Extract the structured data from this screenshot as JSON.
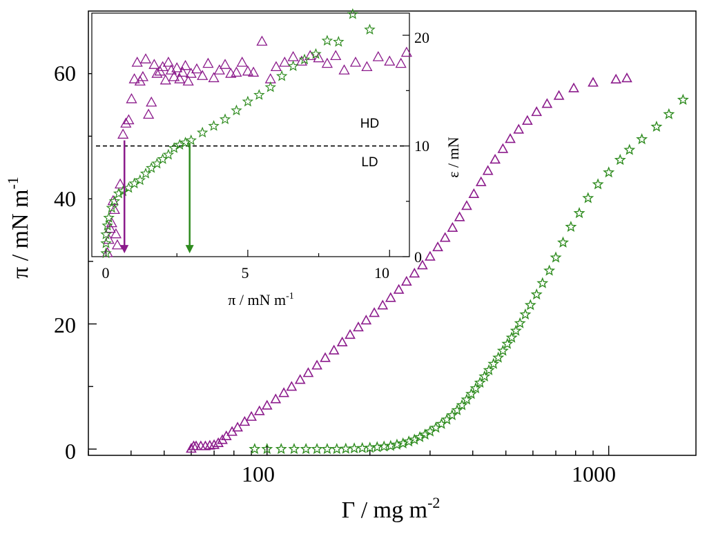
{
  "colors": {
    "purple": "#8B1A8B",
    "green": "#2E8B1E",
    "axis": "#000000"
  },
  "chart_data": [
    {
      "id": "main",
      "type": "scatter",
      "xscale": "log",
      "xlim": [
        30,
        1800
      ],
      "ylim": [
        -1,
        70
      ],
      "xlabel": "Γ / mg m",
      "xlabel_sup": "-2",
      "ylabel": "π / mN m",
      "ylabel_sup": "-1",
      "x_ticks": [
        100,
        1000
      ],
      "x_tick_labels": [
        "100",
        "1000"
      ],
      "y_ticks": [
        0,
        20,
        40,
        60
      ],
      "y_tick_labels": [
        "0",
        "20",
        "40",
        "60"
      ],
      "series": [
        {
          "name": "purple triangles",
          "marker": "triangle",
          "color": "#8B1A8B",
          "points": [
            [
              60,
              0
            ],
            [
              61,
              0.4
            ],
            [
              62,
              0.4
            ],
            [
              64,
              0.4
            ],
            [
              66,
              0.4
            ],
            [
              68,
              0.5
            ],
            [
              70,
              0.6
            ],
            [
              72,
              0.9
            ],
            [
              74,
              1.4
            ],
            [
              76,
              2.0
            ],
            [
              79,
              2.7
            ],
            [
              82,
              3.4
            ],
            [
              86,
              4.3
            ],
            [
              90,
              5.1
            ],
            [
              95,
              6.0
            ],
            [
              100,
              6.9
            ],
            [
              106,
              7.9
            ],
            [
              112,
              8.9
            ],
            [
              118,
              9.9
            ],
            [
              125,
              11.0
            ],
            [
              132,
              12.1
            ],
            [
              140,
              13.3
            ],
            [
              148,
              14.5
            ],
            [
              157,
              15.7
            ],
            [
              166,
              17.0
            ],
            [
              175,
              18.2
            ],
            [
              185,
              19.4
            ],
            [
              195,
              20.5
            ],
            [
              206,
              21.7
            ],
            [
              218,
              22.9
            ],
            [
              230,
              24.1
            ],
            [
              243,
              25.4
            ],
            [
              256,
              26.7
            ],
            [
              270,
              28.0
            ],
            [
              285,
              29.3
            ],
            [
              300,
              30.7
            ],
            [
              316,
              32.2
            ],
            [
              332,
              33.7
            ],
            [
              349,
              35.3
            ],
            [
              366,
              37.0
            ],
            [
              384,
              38.8
            ],
            [
              403,
              40.7
            ],
            [
              423,
              42.6
            ],
            [
              443,
              44.4
            ],
            [
              465,
              46.2
            ],
            [
              490,
              47.9
            ],
            [
              515,
              49.5
            ],
            [
              545,
              51.0
            ],
            [
              578,
              52.4
            ],
            [
              615,
              53.8
            ],
            [
              660,
              55.1
            ],
            [
              715,
              56.4
            ],
            [
              790,
              57.6
            ],
            [
              900,
              58.5
            ],
            [
              1050,
              59.0
            ],
            [
              1130,
              59.2
            ]
          ]
        },
        {
          "name": "green stars",
          "marker": "star",
          "color": "#2E8B1E",
          "points": [
            [
              92,
              0
            ],
            [
              100,
              0
            ],
            [
              110,
              0
            ],
            [
              120,
              0
            ],
            [
              130,
              0
            ],
            [
              140,
              0
            ],
            [
              150,
              0
            ],
            [
              160,
              0
            ],
            [
              170,
              0.05
            ],
            [
              180,
              0.1
            ],
            [
              190,
              0.15
            ],
            [
              200,
              0.2
            ],
            [
              210,
              0.3
            ],
            [
              220,
              0.4
            ],
            [
              230,
              0.5
            ],
            [
              240,
              0.7
            ],
            [
              250,
              0.9
            ],
            [
              260,
              1.2
            ],
            [
              270,
              1.5
            ],
            [
              280,
              1.9
            ],
            [
              290,
              2.3
            ],
            [
              300,
              2.8
            ],
            [
              312,
              3.4
            ],
            [
              324,
              4.0
            ],
            [
              336,
              4.7
            ],
            [
              348,
              5.4
            ],
            [
              360,
              6.2
            ],
            [
              372,
              7.0
            ],
            [
              384,
              7.9
            ],
            [
              396,
              8.8
            ],
            [
              408,
              9.7
            ],
            [
              420,
              10.6
            ],
            [
              433,
              11.6
            ],
            [
              446,
              12.6
            ],
            [
              460,
              13.6
            ],
            [
              475,
              14.6
            ],
            [
              490,
              15.7
            ],
            [
              505,
              16.8
            ],
            [
              520,
              17.8
            ],
            [
              535,
              18.9
            ],
            [
              550,
              20.1
            ],
            [
              570,
              21.5
            ],
            [
              590,
              23.0
            ],
            [
              615,
              24.7
            ],
            [
              640,
              26.5
            ],
            [
              670,
              28.5
            ],
            [
              700,
              30.6
            ],
            [
              735,
              33.0
            ],
            [
              775,
              35.5
            ],
            [
              820,
              37.7
            ],
            [
              870,
              40.1
            ],
            [
              930,
              42.3
            ],
            [
              1000,
              44.2
            ],
            [
              1080,
              46.2
            ],
            [
              1150,
              47.8
            ],
            [
              1250,
              49.5
            ],
            [
              1380,
              51.5
            ],
            [
              1500,
              53.5
            ],
            [
              1650,
              55.8
            ]
          ]
        }
      ]
    },
    {
      "id": "inset",
      "type": "scatter",
      "xlim": [
        -0.5,
        10.7
      ],
      "ylim": [
        0,
        22
      ],
      "xlabel": "π / mN m",
      "xlabel_sup": "-1",
      "ylabel": "ε / mN",
      "x_ticks": [
        0,
        5,
        10
      ],
      "x_tick_labels": [
        "0",
        "5",
        "10"
      ],
      "y_ticks": [
        0,
        10,
        20
      ],
      "y_tick_labels": [
        "0",
        "10",
        "20"
      ],
      "reference_line": {
        "y": 10,
        "style": "dashed"
      },
      "annotations": [
        {
          "text": "HD",
          "x": 9.3,
          "y": 12.1
        },
        {
          "text": "LD",
          "x": 9.3,
          "y": 8.6
        }
      ],
      "arrows": [
        {
          "color": "#8B1A8B",
          "x": 0.65,
          "y_from": 10.5,
          "y_to": 0.3
        },
        {
          "color": "#2E8B1E",
          "x": 2.95,
          "y_from": 10.2,
          "y_to": 0.3
        }
      ],
      "series": [
        {
          "name": "purple triangles",
          "marker": "triangle",
          "color": "#8B1A8B",
          "points": [
            [
              0.05,
              0.3
            ],
            [
              0.1,
              1.5
            ],
            [
              0.15,
              2.5
            ],
            [
              0.2,
              3.0
            ],
            [
              0.25,
              5.0
            ],
            [
              0.3,
              4.2
            ],
            [
              0.35,
              2.0
            ],
            [
              0.4,
              1.0
            ],
            [
              0.5,
              6.5
            ],
            [
              0.6,
              11.0
            ],
            [
              0.7,
              12.0
            ],
            [
              0.8,
              12.3
            ],
            [
              0.9,
              14.2
            ],
            [
              1.0,
              16.0
            ],
            [
              1.1,
              17.5
            ],
            [
              1.2,
              15.8
            ],
            [
              1.3,
              16.2
            ],
            [
              1.4,
              17.8
            ],
            [
              1.5,
              12.8
            ],
            [
              1.6,
              13.9
            ],
            [
              1.7,
              17.3
            ],
            [
              1.8,
              16.5
            ],
            [
              1.9,
              16.7
            ],
            [
              2.0,
              17.1
            ],
            [
              2.1,
              15.9
            ],
            [
              2.2,
              17.5
            ],
            [
              2.3,
              16.8
            ],
            [
              2.4,
              16.2
            ],
            [
              2.5,
              17.0
            ],
            [
              2.6,
              16.0
            ],
            [
              2.7,
              16.6
            ],
            [
              2.8,
              17.2
            ],
            [
              2.9,
              15.8
            ],
            [
              3.0,
              16.5
            ],
            [
              3.2,
              16.9
            ],
            [
              3.4,
              16.3
            ],
            [
              3.6,
              17.4
            ],
            [
              3.8,
              16.1
            ],
            [
              4.0,
              16.8
            ],
            [
              4.2,
              17.3
            ],
            [
              4.4,
              16.5
            ],
            [
              4.6,
              16.6
            ],
            [
              4.8,
              17.5
            ],
            [
              5.0,
              16.7
            ],
            [
              5.2,
              16.6
            ],
            [
              5.5,
              19.4
            ],
            [
              5.8,
              16.0
            ],
            [
              6.0,
              17.1
            ],
            [
              6.3,
              17.5
            ],
            [
              6.6,
              18.0
            ],
            [
              6.9,
              17.6
            ],
            [
              7.2,
              18.1
            ],
            [
              7.5,
              17.9
            ],
            [
              7.8,
              17.4
            ],
            [
              8.1,
              18.1
            ],
            [
              8.4,
              16.8
            ],
            [
              8.8,
              17.5
            ],
            [
              9.2,
              17.1
            ],
            [
              9.6,
              18.0
            ],
            [
              10.0,
              17.6
            ],
            [
              10.4,
              17.4
            ],
            [
              10.6,
              18.4
            ]
          ]
        },
        {
          "name": "green stars",
          "marker": "star",
          "color": "#2E8B1E",
          "points": [
            [
              0.0,
              0.3
            ],
            [
              0.0,
              1.2
            ],
            [
              0.0,
              2.0
            ],
            [
              0.05,
              2.8
            ],
            [
              0.1,
              3.5
            ],
            [
              0.2,
              4.4
            ],
            [
              0.3,
              5.0
            ],
            [
              0.45,
              5.7
            ],
            [
              0.6,
              5.9
            ],
            [
              0.8,
              6.2
            ],
            [
              1.0,
              6.6
            ],
            [
              1.2,
              6.9
            ],
            [
              1.4,
              7.5
            ],
            [
              1.6,
              8.0
            ],
            [
              1.8,
              8.4
            ],
            [
              2.0,
              8.8
            ],
            [
              2.2,
              9.2
            ],
            [
              2.4,
              9.8
            ],
            [
              2.6,
              10.1
            ],
            [
              2.8,
              10.3
            ],
            [
              3.0,
              10.5
            ],
            [
              3.4,
              11.2
            ],
            [
              3.8,
              11.8
            ],
            [
              4.2,
              12.4
            ],
            [
              4.6,
              13.2
            ],
            [
              5.0,
              14.0
            ],
            [
              5.4,
              14.6
            ],
            [
              5.8,
              15.3
            ],
            [
              6.2,
              16.3
            ],
            [
              6.6,
              17.2
            ],
            [
              7.0,
              17.8
            ],
            [
              7.4,
              18.3
            ],
            [
              7.8,
              19.5
            ],
            [
              8.2,
              19.4
            ],
            [
              8.7,
              21.9
            ],
            [
              9.3,
              20.5
            ]
          ]
        }
      ]
    }
  ]
}
